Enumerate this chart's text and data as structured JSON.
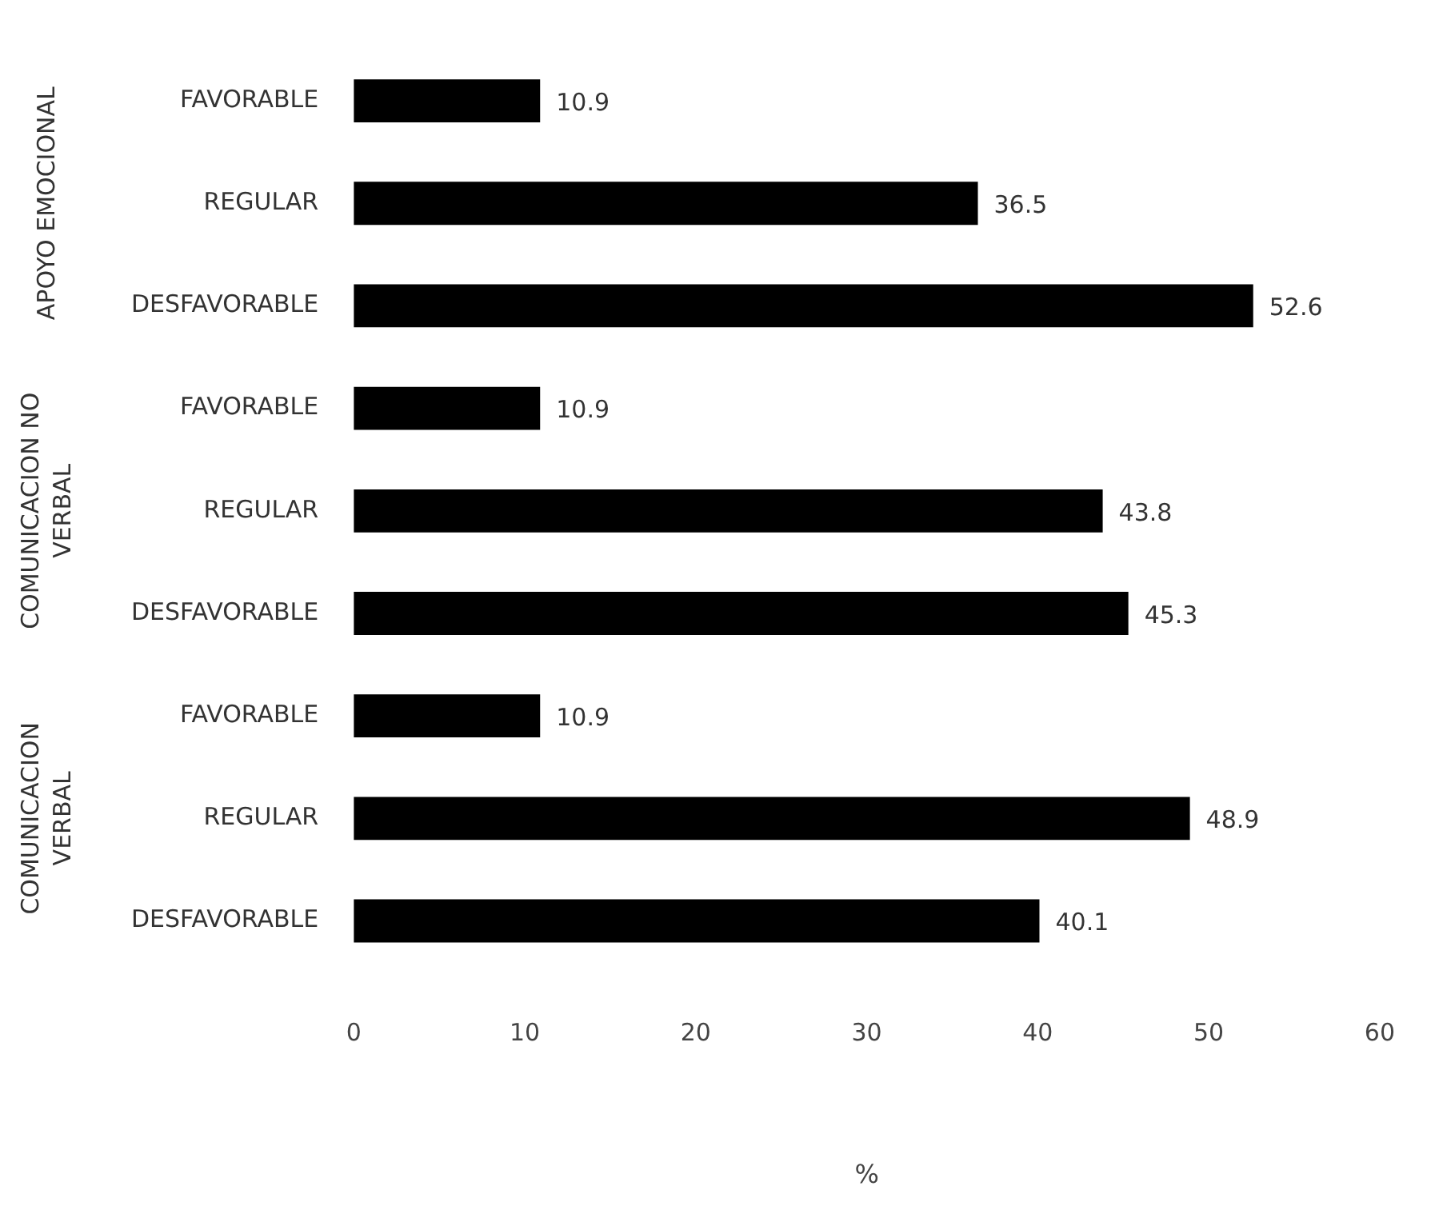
{
  "chart_data": {
    "type": "bar",
    "orientation": "horizontal",
    "categories": [
      "FAVORABLE",
      "REGULAR",
      "DESFAVORABLE",
      "FAVORABLE",
      "REGULAR",
      "DESFAVORABLE",
      "FAVORABLE",
      "REGULAR",
      "DESFAVORABLE"
    ],
    "values": [
      10.9,
      36.5,
      52.6,
      10.9,
      43.8,
      45.3,
      10.9,
      48.9,
      40.1
    ],
    "color": "#000000",
    "xlim": [
      0,
      60
    ],
    "xticks": [
      0,
      10,
      20,
      30,
      40,
      50,
      60
    ],
    "xlabel": "%",
    "data_labels": true,
    "grid": false,
    "legend": false,
    "annotations": [
      "APOYO EMOCIONAL",
      "COMUNICACION NO\nVERBAL",
      "COMUNICACION\nVERBAL"
    ]
  }
}
